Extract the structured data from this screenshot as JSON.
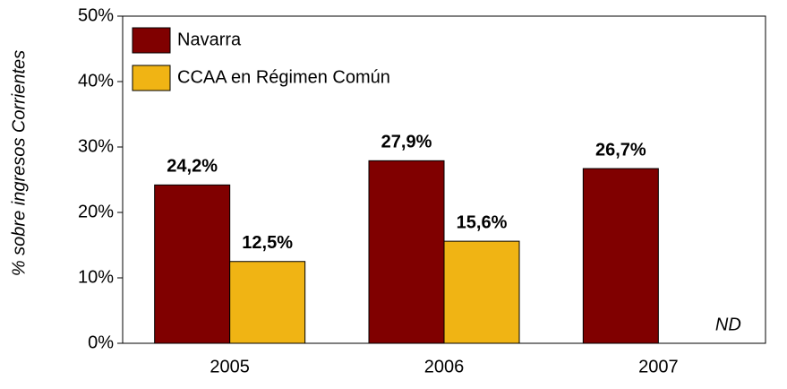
{
  "chart_data": {
    "type": "bar",
    "y_label": "% sobre ingresos Corrientes",
    "categories": [
      "2005",
      "2006",
      "2007"
    ],
    "series": [
      {
        "name": "Navarra",
        "color": "#800000",
        "values": [
          24.2,
          27.9,
          26.7
        ],
        "value_labels": [
          "24,2%",
          "27,9%",
          "26,7%"
        ]
      },
      {
        "name": "CCAA en Régimen Común",
        "color": "#f0b414",
        "values": [
          12.5,
          15.6,
          null
        ],
        "value_labels": [
          "12,5%",
          "15,6%",
          null
        ]
      }
    ],
    "annotation": "ND",
    "ylim": [
      0,
      50
    ],
    "yticks": [
      {
        "value": 0,
        "label": "0%"
      },
      {
        "value": 10,
        "label": "10%"
      },
      {
        "value": 20,
        "label": "20%"
      },
      {
        "value": 30,
        "label": "30%"
      },
      {
        "value": 40,
        "label": "40%"
      },
      {
        "value": 50,
        "label": "50%"
      }
    ],
    "legend": "top-left",
    "grid": false
  }
}
